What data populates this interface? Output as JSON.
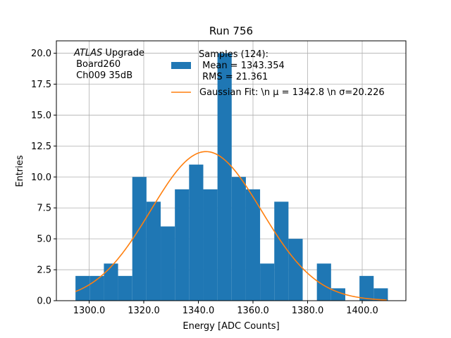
{
  "chart_data": {
    "type": "histogram",
    "title": "Run 756",
    "xlabel": "Energy [ADC Counts]",
    "ylabel": "Entries",
    "xlim": [
      1288,
      1416
    ],
    "ylim": [
      0,
      21
    ],
    "grid": true,
    "x_ticks": [
      1300,
      1320,
      1340,
      1360,
      1380,
      1400
    ],
    "x_tick_labels": [
      "1300.0",
      "1320.0",
      "1340.0",
      "1360.0",
      "1380.0",
      "1400.0"
    ],
    "y_ticks": [
      0,
      2.5,
      5,
      7.5,
      10,
      12.5,
      15,
      17.5,
      20
    ],
    "y_tick_labels": [
      "0.0",
      "2.5",
      "5.0",
      "7.5",
      "10.0",
      "12.5",
      "15.0",
      "17.5",
      "20.0"
    ],
    "bins": {
      "edges": [
        1295,
        1300.2,
        1305.4,
        1310.6,
        1315.8,
        1321,
        1326.2,
        1331.4,
        1336.6,
        1341.8,
        1347,
        1352.2,
        1357.4,
        1362.6,
        1367.8,
        1373,
        1378.2,
        1383.4,
        1388.6,
        1393.8,
        1399,
        1404.2,
        1409.4
      ],
      "counts": [
        2,
        2,
        3,
        2,
        10,
        8,
        6,
        9,
        11,
        9,
        20,
        10,
        9,
        3,
        8,
        5,
        0,
        3,
        1,
        0,
        2,
        1
      ],
      "color": "#1f77b4"
    },
    "fit": {
      "name": "Gaussian Fit",
      "mu": 1342.8,
      "sigma": 20.226,
      "amplitude": 12.05,
      "x_range": [
        1295,
        1409
      ],
      "color": "#ff7f0e"
    },
    "legend": {
      "placement": "top-center",
      "entries": [
        {
          "label": "Samples (124):\n Mean = 1343.354\n RMS = 21.361",
          "color": "#1f77b4",
          "kind": "patch"
        },
        {
          "label": "Gaussian Fit: \\n μ = 1342.8 \\n σ=20.226",
          "color": "#ff7f0e",
          "kind": "line"
        }
      ]
    },
    "annotation": {
      "lines": [
        "ATLAS Upgrade",
        " Board260",
        " Ch009 35dB"
      ],
      "placement": "top-left"
    }
  }
}
